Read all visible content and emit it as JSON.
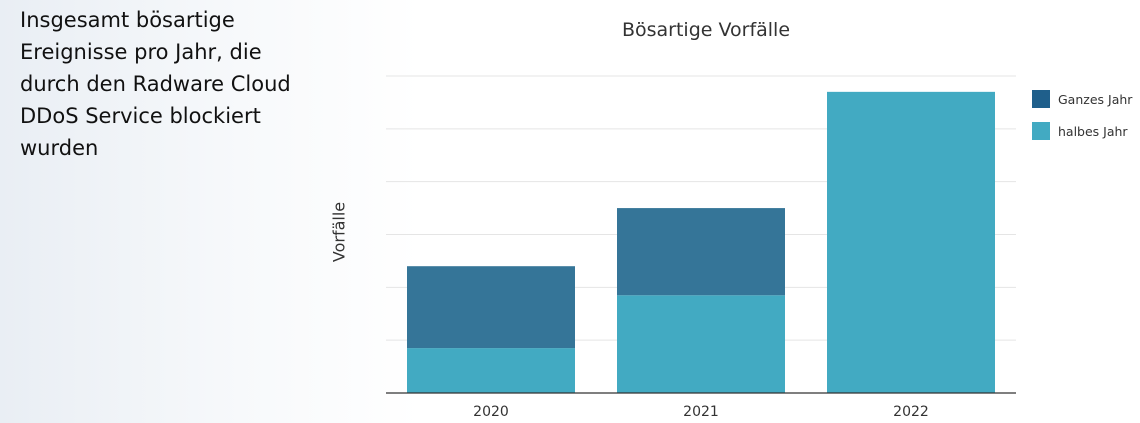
{
  "side_text": "Insgesamt bösartige Ereignisse pro Jahr, die durch den Radware Cloud DDoS Service blockiert wurden",
  "chart_data": {
    "type": "bar",
    "stacked": true,
    "title": "Bösartige Vorfälle",
    "xlabel": "",
    "ylabel": "Vorfälle",
    "categories": [
      "2020",
      "2021",
      "2022"
    ],
    "series": [
      {
        "name": "halbes Jahr",
        "color": "#42aac2",
        "values": [
          17,
          37,
          114
        ]
      },
      {
        "name": "Ganzes Jahr",
        "color": "#357598",
        "values": [
          31,
          33,
          0
        ]
      }
    ],
    "legend_order": [
      "Ganzes Jahr",
      "halbes Jahr"
    ],
    "legend_position": "right",
    "ylim": [
      0,
      120
    ],
    "grid": true,
    "grid_color": "#e5e5e5",
    "y_tick_labels_visible": false
  }
}
